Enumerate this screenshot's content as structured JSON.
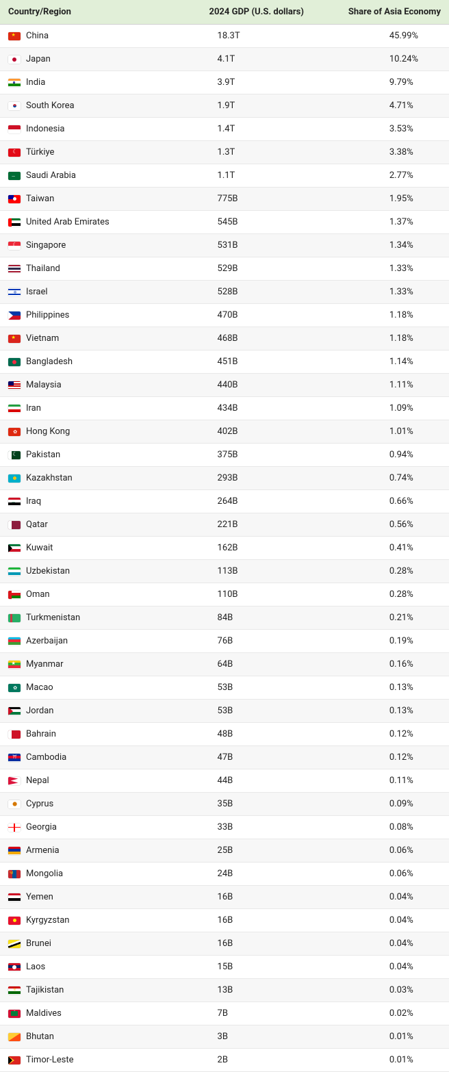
{
  "table": {
    "columns": {
      "country": "Country/Region",
      "gdp": "2024 GDP (U.S. dollars)",
      "share": "Share of Asia Economy"
    },
    "header_bg": "#e1efd8",
    "row_alt_bg": "#f7f7f7",
    "border_color": "#e8e8e8",
    "font_size": 13,
    "rows": [
      {
        "country": "China",
        "gdp": "18.3T",
        "share": "45.99%",
        "flag": {
          "bg": "#de2910",
          "star": "#ffde00"
        }
      },
      {
        "country": "Japan",
        "gdp": "4.1T",
        "share": "10.24%",
        "flag": {
          "bg": "#ffffff",
          "circle": "#bc002d"
        }
      },
      {
        "country": "India",
        "gdp": "3.9T",
        "share": "9.79%",
        "flag": {
          "h3": [
            "#ff9933",
            "#ffffff",
            "#138808"
          ],
          "wheel": "#000080"
        }
      },
      {
        "country": "South Korea",
        "gdp": "1.9T",
        "share": "4.71%",
        "flag": {
          "bg": "#ffffff",
          "taeguk": [
            "#cd2e3a",
            "#0047a0"
          ]
        }
      },
      {
        "country": "Indonesia",
        "gdp": "1.4T",
        "share": "3.53%",
        "flag": {
          "h2": [
            "#ce1126",
            "#ffffff"
          ]
        }
      },
      {
        "country": "Türkiye",
        "gdp": "1.3T",
        "share": "3.38%",
        "flag": {
          "bg": "#e30a17",
          "crescent": "#ffffff"
        }
      },
      {
        "country": "Saudi Arabia",
        "gdp": "1.1T",
        "share": "2.77%",
        "flag": {
          "bg": "#006c35",
          "script": "#ffffff"
        }
      },
      {
        "country": "Taiwan",
        "gdp": "775B",
        "share": "1.95%",
        "flag": {
          "bg": "#fe0000",
          "canton": "#000097",
          "sun": "#ffffff"
        }
      },
      {
        "country": "United Arab Emirates",
        "gdp": "545B",
        "share": "1.37%",
        "flag": {
          "vred": "#ff0000",
          "h3": [
            "#00732f",
            "#ffffff",
            "#000000"
          ]
        }
      },
      {
        "country": "Singapore",
        "gdp": "531B",
        "share": "1.34%",
        "flag": {
          "h2": [
            "#ed2939",
            "#ffffff"
          ],
          "crescent": "#ffffff"
        }
      },
      {
        "country": "Thailand",
        "gdp": "529B",
        "share": "1.33%",
        "flag": {
          "h5": [
            "#a51931",
            "#f4f5f8",
            "#2d2a4a",
            "#f4f5f8",
            "#a51931"
          ]
        }
      },
      {
        "country": "Israel",
        "gdp": "528B",
        "share": "1.33%",
        "flag": {
          "bg": "#ffffff",
          "bars": "#0038b8"
        }
      },
      {
        "country": "Philippines",
        "gdp": "470B",
        "share": "1.18%",
        "flag": {
          "h2": [
            "#0038a8",
            "#ce1126"
          ],
          "tri": "#ffffff"
        }
      },
      {
        "country": "Vietnam",
        "gdp": "468B",
        "share": "1.18%",
        "flag": {
          "bg": "#da251d",
          "star": "#ffff00"
        }
      },
      {
        "country": "Bangladesh",
        "gdp": "451B",
        "share": "1.14%",
        "flag": {
          "bg": "#006a4e",
          "circle": "#f42a41"
        }
      },
      {
        "country": "Malaysia",
        "gdp": "440B",
        "share": "1.11%",
        "flag": {
          "stripes": [
            "#cc0001",
            "#ffffff"
          ],
          "canton": "#010066"
        }
      },
      {
        "country": "Iran",
        "gdp": "434B",
        "share": "1.09%",
        "flag": {
          "h3": [
            "#239f40",
            "#ffffff",
            "#da0000"
          ]
        }
      },
      {
        "country": "Hong Kong",
        "gdp": "402B",
        "share": "1.01%",
        "flag": {
          "bg": "#de2910",
          "flower": "#ffffff"
        }
      },
      {
        "country": "Pakistan",
        "gdp": "375B",
        "share": "0.94%",
        "flag": {
          "bg": "#01411c",
          "bar": "#ffffff",
          "crescent": "#ffffff"
        }
      },
      {
        "country": "Kazakhstan",
        "gdp": "293B",
        "share": "0.74%",
        "flag": {
          "bg": "#00afca",
          "sun": "#fec50c"
        }
      },
      {
        "country": "Iraq",
        "gdp": "264B",
        "share": "0.66%",
        "flag": {
          "h3": [
            "#ce1126",
            "#ffffff",
            "#000000"
          ],
          "script": "#007a3d"
        }
      },
      {
        "country": "Qatar",
        "gdp": "221B",
        "share": "0.56%",
        "flag": {
          "bg": "#8d1b3d",
          "bar": "#ffffff"
        }
      },
      {
        "country": "Kuwait",
        "gdp": "162B",
        "share": "0.41%",
        "flag": {
          "h3": [
            "#007a3d",
            "#ffffff",
            "#ce1126"
          ],
          "trap": "#000000"
        }
      },
      {
        "country": "Uzbekistan",
        "gdp": "113B",
        "share": "0.28%",
        "flag": {
          "h3": [
            "#1eb53a",
            "#ffffff",
            "#0099b5"
          ],
          "sep": "#ce1126"
        }
      },
      {
        "country": "Oman",
        "gdp": "110B",
        "share": "0.28%",
        "flag": {
          "h3": [
            "#ffffff",
            "#db161b",
            "#008000"
          ],
          "bar": "#db161b"
        }
      },
      {
        "country": "Turkmenistan",
        "gdp": "84B",
        "share": "0.21%",
        "flag": {
          "bg": "#28ae66",
          "carpet": "#ca3745"
        }
      },
      {
        "country": "Azerbaijan",
        "gdp": "76B",
        "share": "0.19%",
        "flag": {
          "h3": [
            "#00b9e4",
            "#ed2939",
            "#3f9c35"
          ]
        }
      },
      {
        "country": "Myanmar",
        "gdp": "64B",
        "share": "0.16%",
        "flag": {
          "h3": [
            "#fecb00",
            "#34b233",
            "#ea2839"
          ],
          "star": "#ffffff"
        }
      },
      {
        "country": "Macao",
        "gdp": "53B",
        "share": "0.13%",
        "flag": {
          "bg": "#00785e",
          "lotus": "#ffffff"
        }
      },
      {
        "country": "Jordan",
        "gdp": "53B",
        "share": "0.13%",
        "flag": {
          "h3": [
            "#000000",
            "#ffffff",
            "#007a3d"
          ],
          "tri": "#ce1126"
        }
      },
      {
        "country": "Bahrain",
        "gdp": "48B",
        "share": "0.12%",
        "flag": {
          "bg": "#ce1126",
          "bar": "#ffffff"
        }
      },
      {
        "country": "Cambodia",
        "gdp": "47B",
        "share": "0.12%",
        "flag": {
          "h3": [
            "#032ea1",
            "#e00025",
            "#032ea1"
          ],
          "temple": "#ffffff"
        }
      },
      {
        "country": "Nepal",
        "gdp": "44B",
        "share": "0.11%",
        "flag": {
          "bg": "#dc143c",
          "border": "#003893"
        }
      },
      {
        "country": "Cyprus",
        "gdp": "35B",
        "share": "0.09%",
        "flag": {
          "bg": "#ffffff",
          "island": "#d57800"
        }
      },
      {
        "country": "Georgia",
        "gdp": "33B",
        "share": "0.08%",
        "flag": {
          "bg": "#ffffff",
          "cross": "#ff0000"
        }
      },
      {
        "country": "Armenia",
        "gdp": "25B",
        "share": "0.06%",
        "flag": {
          "h3": [
            "#d90012",
            "#0033a0",
            "#f2a800"
          ]
        }
      },
      {
        "country": "Mongolia",
        "gdp": "24B",
        "share": "0.06%",
        "flag": {
          "v3": [
            "#c4272f",
            "#015197",
            "#c4272f"
          ],
          "soyombo": "#f9cf02"
        }
      },
      {
        "country": "Yemen",
        "gdp": "16B",
        "share": "0.04%",
        "flag": {
          "h3": [
            "#ce1126",
            "#ffffff",
            "#000000"
          ]
        }
      },
      {
        "country": "Kyrgyzstan",
        "gdp": "16B",
        "share": "0.04%",
        "flag": {
          "bg": "#e8112d",
          "sun": "#ffef00"
        }
      },
      {
        "country": "Brunei",
        "gdp": "16B",
        "share": "0.04%",
        "flag": {
          "bg": "#f7e017",
          "diag": [
            "#000000",
            "#ffffff"
          ]
        }
      },
      {
        "country": "Laos",
        "gdp": "15B",
        "share": "0.04%",
        "flag": {
          "h3": [
            "#ce1126",
            "#002868",
            "#ce1126"
          ],
          "circle": "#ffffff"
        }
      },
      {
        "country": "Tajikistan",
        "gdp": "13B",
        "share": "0.03%",
        "flag": {
          "h3": [
            "#cc0000",
            "#ffffff",
            "#006600"
          ],
          "crown": "#f8c300"
        }
      },
      {
        "country": "Maldives",
        "gdp": "7B",
        "share": "0.02%",
        "flag": {
          "bg": "#d21034",
          "panel": "#007e3a",
          "crescent": "#ffffff"
        }
      },
      {
        "country": "Bhutan",
        "gdp": "3B",
        "share": "0.01%",
        "flag": {
          "diag2": [
            "#ffcc33",
            "#ff4e12"
          ]
        }
      },
      {
        "country": "Timor-Leste",
        "gdp": "2B",
        "share": "0.01%",
        "flag": {
          "bg": "#dc241f",
          "tri1": "#ffc726",
          "tri2": "#000000"
        }
      }
    ]
  }
}
